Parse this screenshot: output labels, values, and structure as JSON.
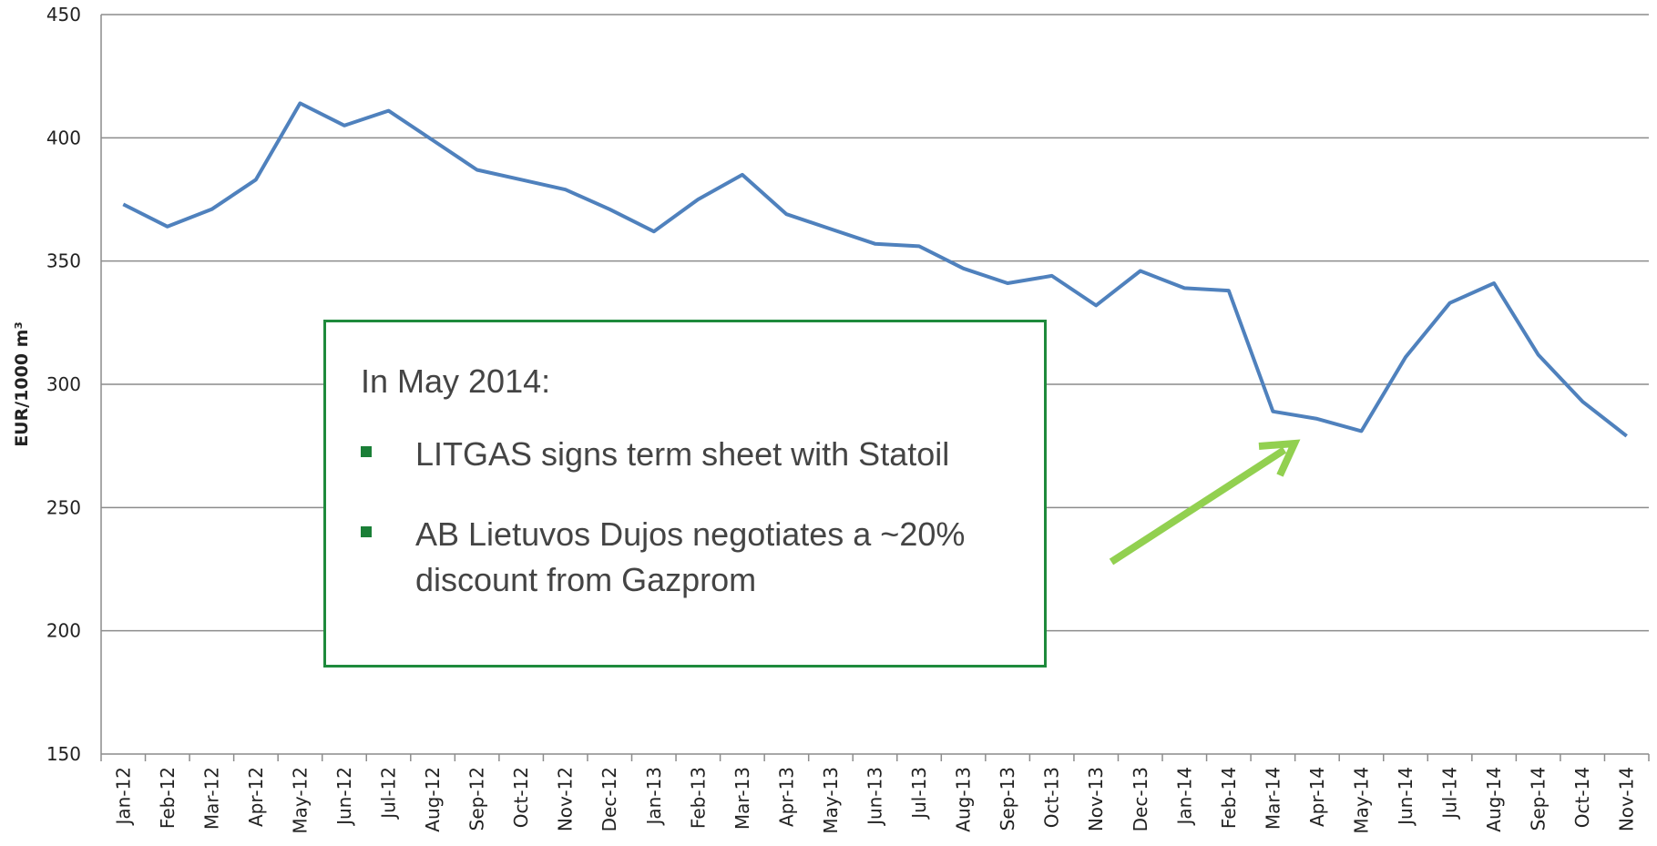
{
  "chart_data": {
    "type": "line",
    "y_label": "EUR/1000 m³",
    "categories": [
      "Jan-12",
      "Feb-12",
      "Mar-12",
      "Apr-12",
      "May-12",
      "Jun-12",
      "Jul-12",
      "Aug-12",
      "Sep-12",
      "Oct-12",
      "Nov-12",
      "Dec-12",
      "Jan-13",
      "Feb-13",
      "Mar-13",
      "Apr-13",
      "May-13",
      "Jun-13",
      "Jul-13",
      "Aug-13",
      "Sep-13",
      "Oct-13",
      "Nov-13",
      "Dec-13",
      "Jan-14",
      "Feb-14",
      "Mar-14",
      "Apr-14",
      "May-14",
      "Jun-14",
      "Jul-14",
      "Aug-14",
      "Sep-14",
      "Oct-14",
      "Nov-14"
    ],
    "values": [
      373,
      364,
      371,
      383,
      414,
      405,
      411,
      399,
      387,
      383,
      379,
      371,
      362,
      375,
      385,
      369,
      363,
      357,
      356,
      347,
      341,
      344,
      332,
      346,
      339,
      338,
      289,
      286,
      281,
      311,
      333,
      341,
      312,
      293,
      279
    ],
    "color": "#4f81bd",
    "ylim": [
      150,
      450
    ],
    "yticks": [
      150,
      200,
      250,
      300,
      350,
      400,
      450
    ],
    "grid": true,
    "annotation": {
      "title": "In May 2014:",
      "bullets": [
        "LITGAS signs term sheet with Statoil",
        "AB Lietuvos Dujos negotiates a ~20% discount from Gazprom"
      ]
    }
  }
}
